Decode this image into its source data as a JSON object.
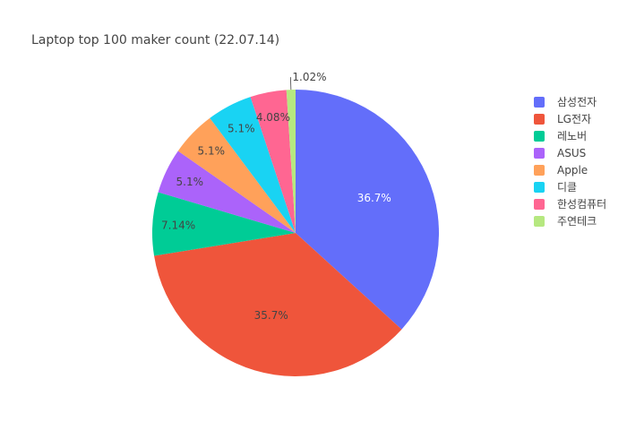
{
  "chart_data": {
    "type": "pie",
    "title": "Laptop top 100 maker count (22.07.14)",
    "labels": [
      "삼성전자",
      "LG전자",
      "레노버",
      "ASUS",
      "Apple",
      "디클",
      "한성컴퓨터",
      "주연테크"
    ],
    "values": [
      36,
      35,
      7,
      5,
      5,
      5,
      4,
      1
    ],
    "percent_labels": [
      "36.7%",
      "35.7%",
      "7.14%",
      "5.1%",
      "5.1%",
      "5.1%",
      "4.08%",
      "1.02%"
    ],
    "colors": [
      "#636efa",
      "#ef553b",
      "#00cc96",
      "#ab63fa",
      "#ffa15a",
      "#19d3f3",
      "#ff6692",
      "#b6e880"
    ],
    "label_colors": [
      "#ffffff",
      "#444444",
      "#444444",
      "#444444",
      "#444444",
      "#444444",
      "#444444",
      "#444444"
    ],
    "direction": "clockwise",
    "legend_position": "right"
  }
}
